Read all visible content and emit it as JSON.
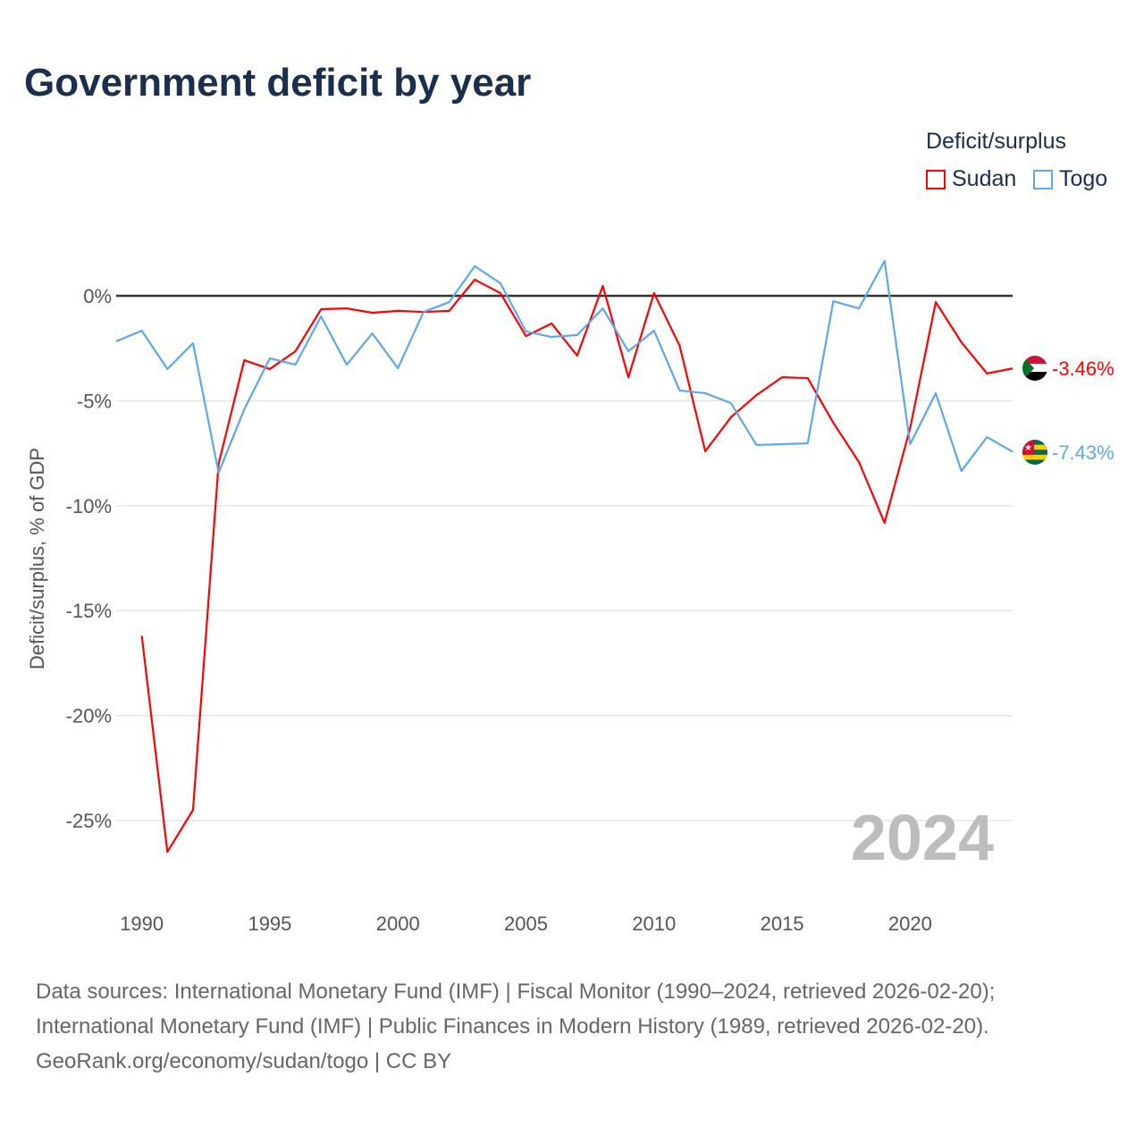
{
  "title": "Government deficit by year",
  "legend": {
    "title": "Deficit/surplus",
    "items": [
      {
        "name": "Sudan",
        "color": "#ff0000"
      },
      {
        "name": "Togo",
        "color": "#5ea8ea"
      }
    ]
  },
  "year_watermark": "2024",
  "end_labels": {
    "sudan": "-3.46%",
    "togo": "-7.43%"
  },
  "source_lines": [
    "Data sources: International Monetary Fund (IMF) | Fiscal Monitor (1990–2024, retrieved 2026-02-20);",
    "International Monetary Fund (IMF) | Public Finances in Modern History (1989, retrieved 2026-02-20).",
    "GeoRank.org/economy/sudan/togo | CC BY"
  ],
  "chart_data": {
    "type": "line",
    "title": "Government deficit by year",
    "xlabel": "",
    "ylabel": "Deficit/surplus, % of GDP",
    "xlim": [
      1989,
      2024
    ],
    "ylim": [
      -27.5,
      2.5
    ],
    "xticks": [
      1990,
      1995,
      2000,
      2005,
      2010,
      2015,
      2020
    ],
    "yticks": [
      0,
      -5,
      -10,
      -15,
      -20,
      -25
    ],
    "ytick_labels": [
      "0%",
      "-5%",
      "-10%",
      "-15%",
      "-20%",
      "-25%"
    ],
    "legend_position": "top-right",
    "series": [
      {
        "name": "Sudan",
        "color": "#ff0000",
        "x": [
          1990,
          1991,
          1992,
          1993,
          1994,
          1995,
          1996,
          1997,
          1998,
          1999,
          2000,
          2001,
          2002,
          2003,
          2004,
          2005,
          2006,
          2007,
          2008,
          2009,
          2010,
          2011,
          2012,
          2013,
          2014,
          2015,
          2016,
          2017,
          2018,
          2019,
          2020,
          2021,
          2022,
          2023,
          2024
        ],
        "values": [
          -16.2,
          -26.5,
          -24.5,
          -8.0,
          -3.07,
          -3.49,
          -2.64,
          -0.64,
          -0.6,
          -0.81,
          -0.72,
          -0.77,
          -0.72,
          0.77,
          0.13,
          -1.92,
          -1.32,
          -2.85,
          0.47,
          -3.88,
          0.13,
          -2.38,
          -7.41,
          -5.79,
          -4.73,
          -3.88,
          -3.92,
          -6.05,
          -7.92,
          -10.82,
          -6.3,
          -0.3,
          -2.21,
          -3.7,
          -3.46
        ]
      },
      {
        "name": "Togo",
        "color": "#5ea8ea",
        "x": [
          1989,
          1990,
          1991,
          1992,
          1993,
          1994,
          1995,
          1996,
          1997,
          1998,
          1999,
          2000,
          2001,
          2002,
          2003,
          2004,
          2005,
          2006,
          2007,
          2008,
          2009,
          2010,
          2011,
          2012,
          2013,
          2014,
          2015,
          2016,
          2017,
          2018,
          2019,
          2020,
          2021,
          2022,
          2023,
          2024
        ],
        "values": [
          -2.17,
          -1.66,
          -3.49,
          -2.26,
          -8.43,
          -5.41,
          -2.98,
          -3.28,
          -0.98,
          -3.28,
          -1.79,
          -3.45,
          -0.77,
          -0.3,
          1.41,
          0.6,
          -1.7,
          -1.96,
          -1.87,
          -0.6,
          -2.64,
          -1.66,
          -4.51,
          -4.64,
          -5.11,
          -7.11,
          -7.07,
          -7.03,
          -0.26,
          -0.6,
          1.66,
          -7.07,
          -4.64,
          -8.35,
          -6.73,
          -7.43
        ]
      }
    ]
  }
}
